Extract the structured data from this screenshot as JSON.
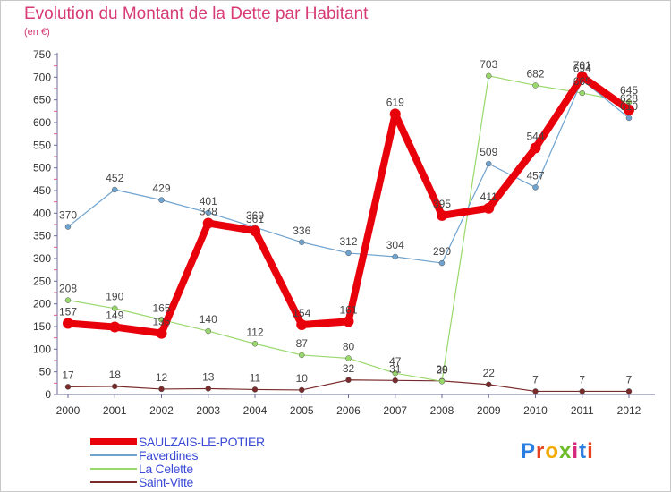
{
  "title": "Evolution du Montant de la Dette par Habitant",
  "subtitle": "(en €)",
  "logo": {
    "text": "Proxiti",
    "letter_colors": [
      "#2a7de1",
      "#e8421d",
      "#f2a900",
      "#6dbd2b",
      "#d6247a",
      "#2a7de1",
      "#e8421d"
    ]
  },
  "chart_data": {
    "type": "line",
    "title": "Evolution du Montant de la Dette par Habitant",
    "ylabel": "(en €)",
    "xlabel": "",
    "ylim": [
      0,
      750
    ],
    "yticks": [
      0,
      50,
      100,
      150,
      200,
      250,
      300,
      350,
      400,
      450,
      500,
      550,
      600,
      650,
      700,
      750
    ],
    "grid": false,
    "legend_position": "bottom-left",
    "x": [
      "2000",
      "2001",
      "2002",
      "2003",
      "2004",
      "2005",
      "2006",
      "2007",
      "2008",
      "2009",
      "2010",
      "2011",
      "2012"
    ],
    "series": [
      {
        "name": "SAULZAIS-LE-POTIER",
        "color": "#e8000b",
        "width": 8,
        "values": [
          157,
          149,
          135,
          378,
          361,
          154,
          161,
          619,
          395,
          411,
          544,
          701,
          628
        ]
      },
      {
        "name": "Faverdines",
        "color": "#6fa3cf",
        "width": 1.2,
        "values": [
          370,
          452,
          429,
          401,
          369,
          336,
          312,
          304,
          290,
          509,
          457,
          694,
          610
        ]
      },
      {
        "name": "La Celette",
        "color": "#99d86a",
        "width": 1.2,
        "values": [
          208,
          190,
          165,
          140,
          112,
          87,
          80,
          47,
          29,
          703,
          682,
          665,
          645
        ]
      },
      {
        "name": "Saint-Vitte",
        "color": "#7a2a2a",
        "width": 1.2,
        "values": [
          17,
          18,
          12,
          13,
          11,
          10,
          32,
          31,
          30,
          22,
          7,
          7,
          7
        ]
      }
    ],
    "point_labels": {
      "SAULZAIS-LE-POTIER": [
        "157",
        "149",
        "135",
        "378",
        "361",
        "154",
        "161",
        "619",
        "395",
        "411",
        "544",
        "701",
        "628"
      ],
      "Faverdines": [
        "370",
        "452",
        "429",
        "401",
        "369",
        "336",
        "312",
        "304",
        "290",
        "509",
        "457",
        "694",
        "610"
      ],
      "La Celette": [
        "208",
        "190",
        "165",
        "140",
        "112",
        "87",
        "80",
        "47",
        "29",
        "703",
        "682",
        "665",
        "645"
      ],
      "Saint-Vitte": [
        "17",
        "18",
        "12",
        "13",
        "11",
        "10",
        "32",
        "31",
        "30",
        "22",
        "7",
        "7",
        "7"
      ]
    }
  }
}
